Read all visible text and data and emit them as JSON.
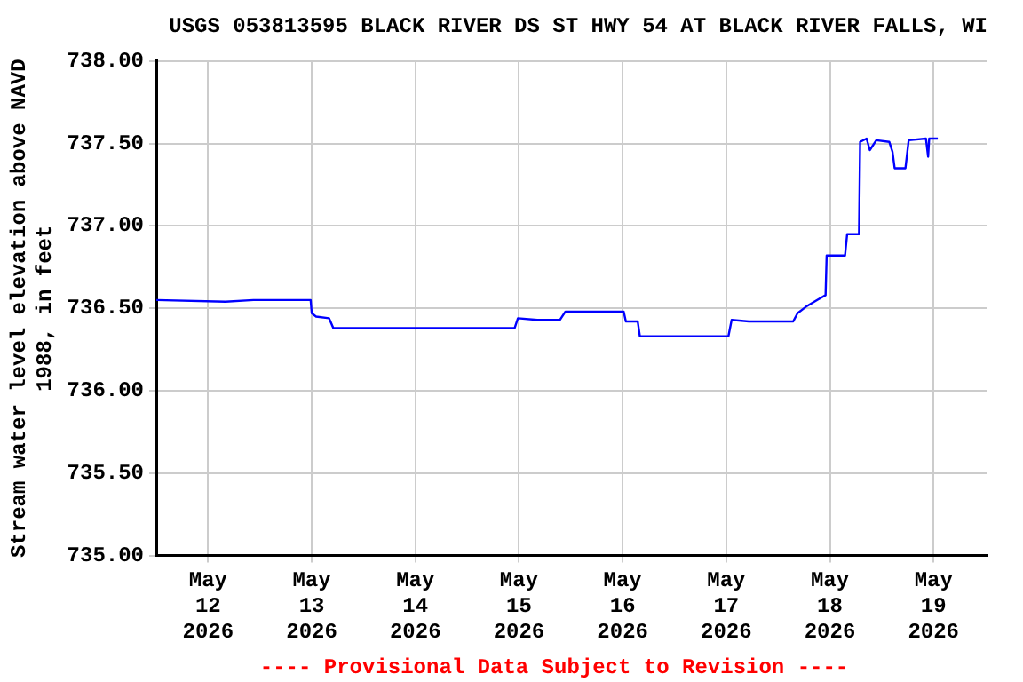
{
  "chart_data": {
    "type": "line",
    "title": "USGS 053813595 BLACK RIVER DS ST HWY 54 AT BLACK RIVER FALLS, WI",
    "ylabel": "Stream water level elevation above NAVD 1988, in feet",
    "annotations": [
      "---- Provisional Data Subject to Revision ----"
    ],
    "x": [
      "2026-05-11T12:00",
      "2026-05-12T04:00",
      "2026-05-12T10:30",
      "2026-05-12T23:45",
      "2026-05-13T00:00",
      "2026-05-13T01:00",
      "2026-05-13T04:00",
      "2026-05-13T05:00",
      "2026-05-14T23:00",
      "2026-05-14T23:45",
      "2026-05-15T04:15",
      "2026-05-15T09:30",
      "2026-05-15T10:45",
      "2026-05-16T00:15",
      "2026-05-16T00:45",
      "2026-05-16T03:30",
      "2026-05-16T04:00",
      "2026-05-17T00:30",
      "2026-05-17T01:15",
      "2026-05-17T05:15",
      "2026-05-17T15:30",
      "2026-05-17T16:30",
      "2026-05-17T18:30",
      "2026-05-17T21:00",
      "2026-05-17T23:00",
      "2026-05-17T23:15",
      "2026-05-18T03:30",
      "2026-05-18T04:00",
      "2026-05-18T06:45",
      "2026-05-18T07:00",
      "2026-05-18T08:30",
      "2026-05-18T09:15",
      "2026-05-18T10:45",
      "2026-05-18T13:45",
      "2026-05-18T14:30",
      "2026-05-18T15:00",
      "2026-05-18T17:30",
      "2026-05-18T18:15",
      "2026-05-18T22:15",
      "2026-05-18T22:45",
      "2026-05-18T23:00",
      "2026-05-19T01:00"
    ],
    "series": [
      {
        "color": "#0000ff",
        "values": [
          736.55,
          736.54,
          736.55,
          736.55,
          736.47,
          736.45,
          736.44,
          736.38,
          736.38,
          736.44,
          736.43,
          736.43,
          736.48,
          736.48,
          736.42,
          736.42,
          736.33,
          736.33,
          736.43,
          736.42,
          736.42,
          736.47,
          736.51,
          736.55,
          736.58,
          736.82,
          736.82,
          736.95,
          736.95,
          737.51,
          737.53,
          737.46,
          737.52,
          737.51,
          737.45,
          737.35,
          737.35,
          737.52,
          737.53,
          737.42,
          737.53,
          737.53
        ]
      }
    ],
    "xlim": [
      "2026-05-11T12:00",
      "2026-05-19T12:30"
    ],
    "xticks": [
      {
        "value": "2026-05-12",
        "label": "May 12 2026"
      },
      {
        "value": "2026-05-13",
        "label": "May 13 2026"
      },
      {
        "value": "2026-05-14",
        "label": "May 14 2026"
      },
      {
        "value": "2026-05-15",
        "label": "May 15 2026"
      },
      {
        "value": "2026-05-16",
        "label": "May 16 2026"
      },
      {
        "value": "2026-05-17",
        "label": "May 17 2026"
      },
      {
        "value": "2026-05-18",
        "label": "May 18 2026"
      },
      {
        "value": "2026-05-19",
        "label": "May 19 2026"
      }
    ],
    "ylim": [
      735,
      738
    ],
    "yticks": [
      {
        "value": 735,
        "label": "735.00"
      },
      {
        "value": 735.5,
        "label": "735.50"
      },
      {
        "value": 736,
        "label": "736.00"
      },
      {
        "value": 736.5,
        "label": "736.50"
      },
      {
        "value": 737,
        "label": "737.00"
      },
      {
        "value": 737.5,
        "label": "737.50"
      },
      {
        "value": 738,
        "label": "738.00"
      }
    ],
    "grid": true,
    "legend": false,
    "marker": "none",
    "line_style": "solid"
  }
}
